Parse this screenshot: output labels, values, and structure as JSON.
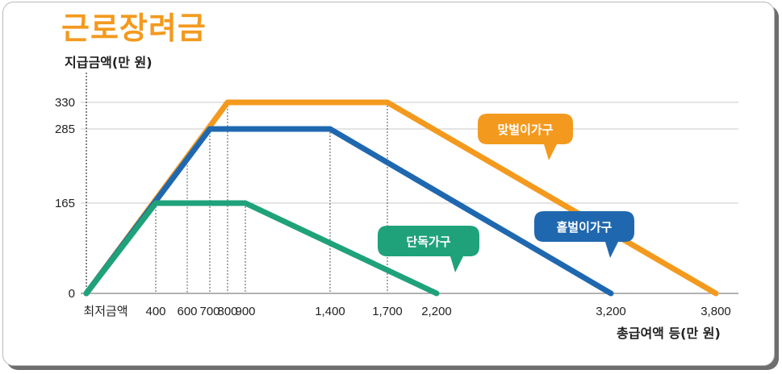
{
  "title": "근로장려금",
  "chart_data": {
    "type": "line",
    "ylabel": "지급금액(만 원)",
    "xlabel": "총급여액 등(만 원)",
    "x_tick_labels": [
      "최저금액",
      "400",
      "600",
      "700",
      "800",
      "900",
      "1,400",
      "1,700",
      "2,200",
      "3,200",
      "3,800"
    ],
    "y_tick_labels": [
      "0",
      "165",
      "285",
      "330"
    ],
    "ylim": [
      0,
      330
    ],
    "series": [
      {
        "name": "맞벌이가구",
        "color": "#f39a1e",
        "points": [
          [
            0,
            0
          ],
          [
            800,
            330
          ],
          [
            1700,
            330
          ],
          [
            3800,
            0
          ]
        ]
      },
      {
        "name": "홑벌이가구",
        "color": "#1f68b0",
        "points": [
          [
            0,
            0
          ],
          [
            700,
            285
          ],
          [
            1400,
            285
          ],
          [
            3200,
            0
          ]
        ]
      },
      {
        "name": "단독가구",
        "color": "#1fa27a",
        "points": [
          [
            0,
            0
          ],
          [
            400,
            165
          ],
          [
            900,
            165
          ],
          [
            2200,
            0
          ]
        ]
      }
    ]
  }
}
